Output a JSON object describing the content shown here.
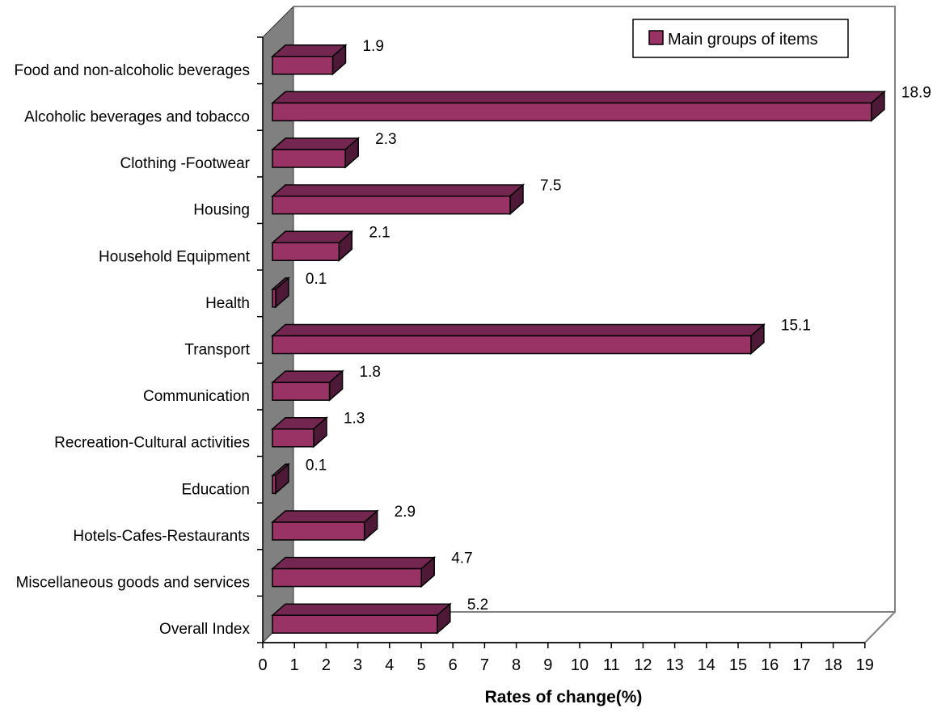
{
  "chart_data": {
    "type": "bar",
    "orientation": "horizontal",
    "style": "3d",
    "categories": [
      "Food and non-alcoholic beverages",
      "Alcoholic beverages and tobacco",
      "Clothing -Footwear",
      "Housing",
      "Household Equipment",
      "Health",
      "Transport",
      "Communication",
      "Recreation-Cultural activities",
      "Education",
      "Hotels-Cafes-Restaurants",
      "Miscellaneous goods and services",
      "Overall Index"
    ],
    "series": [
      {
        "name": "Main groups of items",
        "color": "#993366",
        "values": [
          1.9,
          18.9,
          2.3,
          7.5,
          2.1,
          0.1,
          15.1,
          1.8,
          1.3,
          0.1,
          2.9,
          4.7,
          5.2
        ],
        "value_labels": [
          "1.9",
          "18.9",
          "2.3",
          "7.5",
          "2.1",
          "0.1",
          "15.1",
          "1.8",
          "1.3",
          "0.1",
          "2.9",
          "4.7",
          "5.2"
        ]
      }
    ],
    "xlabel": "Rates of change(%)",
    "ylabel": "",
    "title": "",
    "xlim": [
      0,
      19
    ],
    "xticks": [
      "0",
      "1",
      "2",
      "3",
      "4",
      "5",
      "6",
      "7",
      "8",
      "9",
      "10",
      "11",
      "12",
      "13",
      "14",
      "15",
      "16",
      "17",
      "18",
      "19"
    ],
    "grid": false,
    "legend_position": "top-right",
    "wall_color": "#808080",
    "bar_front_color": "#993366",
    "bar_top_color": "#732650",
    "bar_side_color": "#4d1936"
  }
}
